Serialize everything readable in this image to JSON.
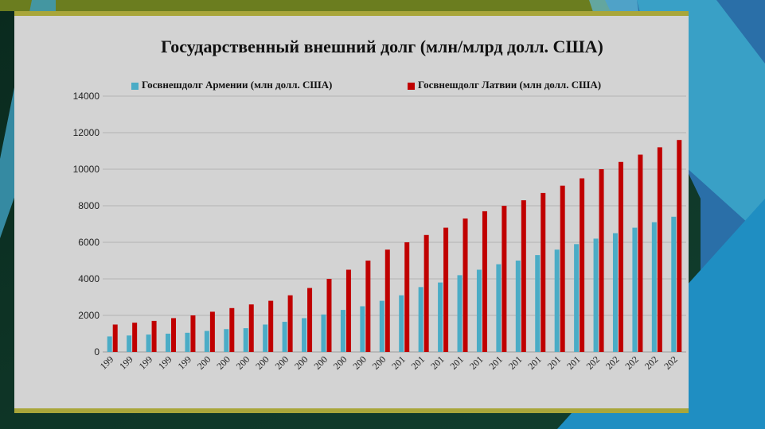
{
  "colors": {
    "armenia": "#4bacc6",
    "latvia": "#c00000",
    "frame_bg": "#d3d3d3",
    "frame_border": "#a9a63a",
    "grid": "#a8a8a8"
  },
  "chart_data": {
    "type": "bar",
    "title": "Государственный внешний долг (млн/млрд долл. США)",
    "xlabel": "",
    "ylabel": "",
    "categories": [
      "199",
      "199",
      "199",
      "199",
      "199",
      "200",
      "200",
      "200",
      "200",
      "200",
      "200",
      "200",
      "200",
      "200",
      "200",
      "201",
      "201",
      "201",
      "201",
      "201",
      "201",
      "201",
      "201",
      "201",
      "201",
      "202",
      "202",
      "202",
      "202",
      "202"
    ],
    "series": [
      {
        "name": "Госвнешдолг Армении (млн долл. США)",
        "values": [
          850,
          900,
          950,
          1000,
          1050,
          1150,
          1250,
          1300,
          1500,
          1650,
          1850,
          2050,
          2300,
          2500,
          2800,
          3100,
          3550,
          3800,
          4200,
          4500,
          4800,
          5000,
          5300,
          5600,
          5900,
          6200,
          6500,
          6800,
          7100,
          7400
        ]
      },
      {
        "name": "Госвнешдолг Латвии (млн долл. США)",
        "values": [
          1500,
          1600,
          1700,
          1850,
          2000,
          2200,
          2400,
          2600,
          2800,
          3100,
          3500,
          4000,
          4500,
          5000,
          5600,
          6000,
          6400,
          6800,
          7300,
          7700,
          8000,
          8300,
          8700,
          9100,
          9500,
          10000,
          10400,
          10800,
          11200,
          11600
        ]
      }
    ],
    "ylim": [
      0,
      14000
    ],
    "yticks": [
      "0",
      "2000",
      "4000",
      "6000",
      "8000",
      "10000",
      "12000",
      "14000"
    ],
    "grid": true,
    "legend_position": "top"
  }
}
